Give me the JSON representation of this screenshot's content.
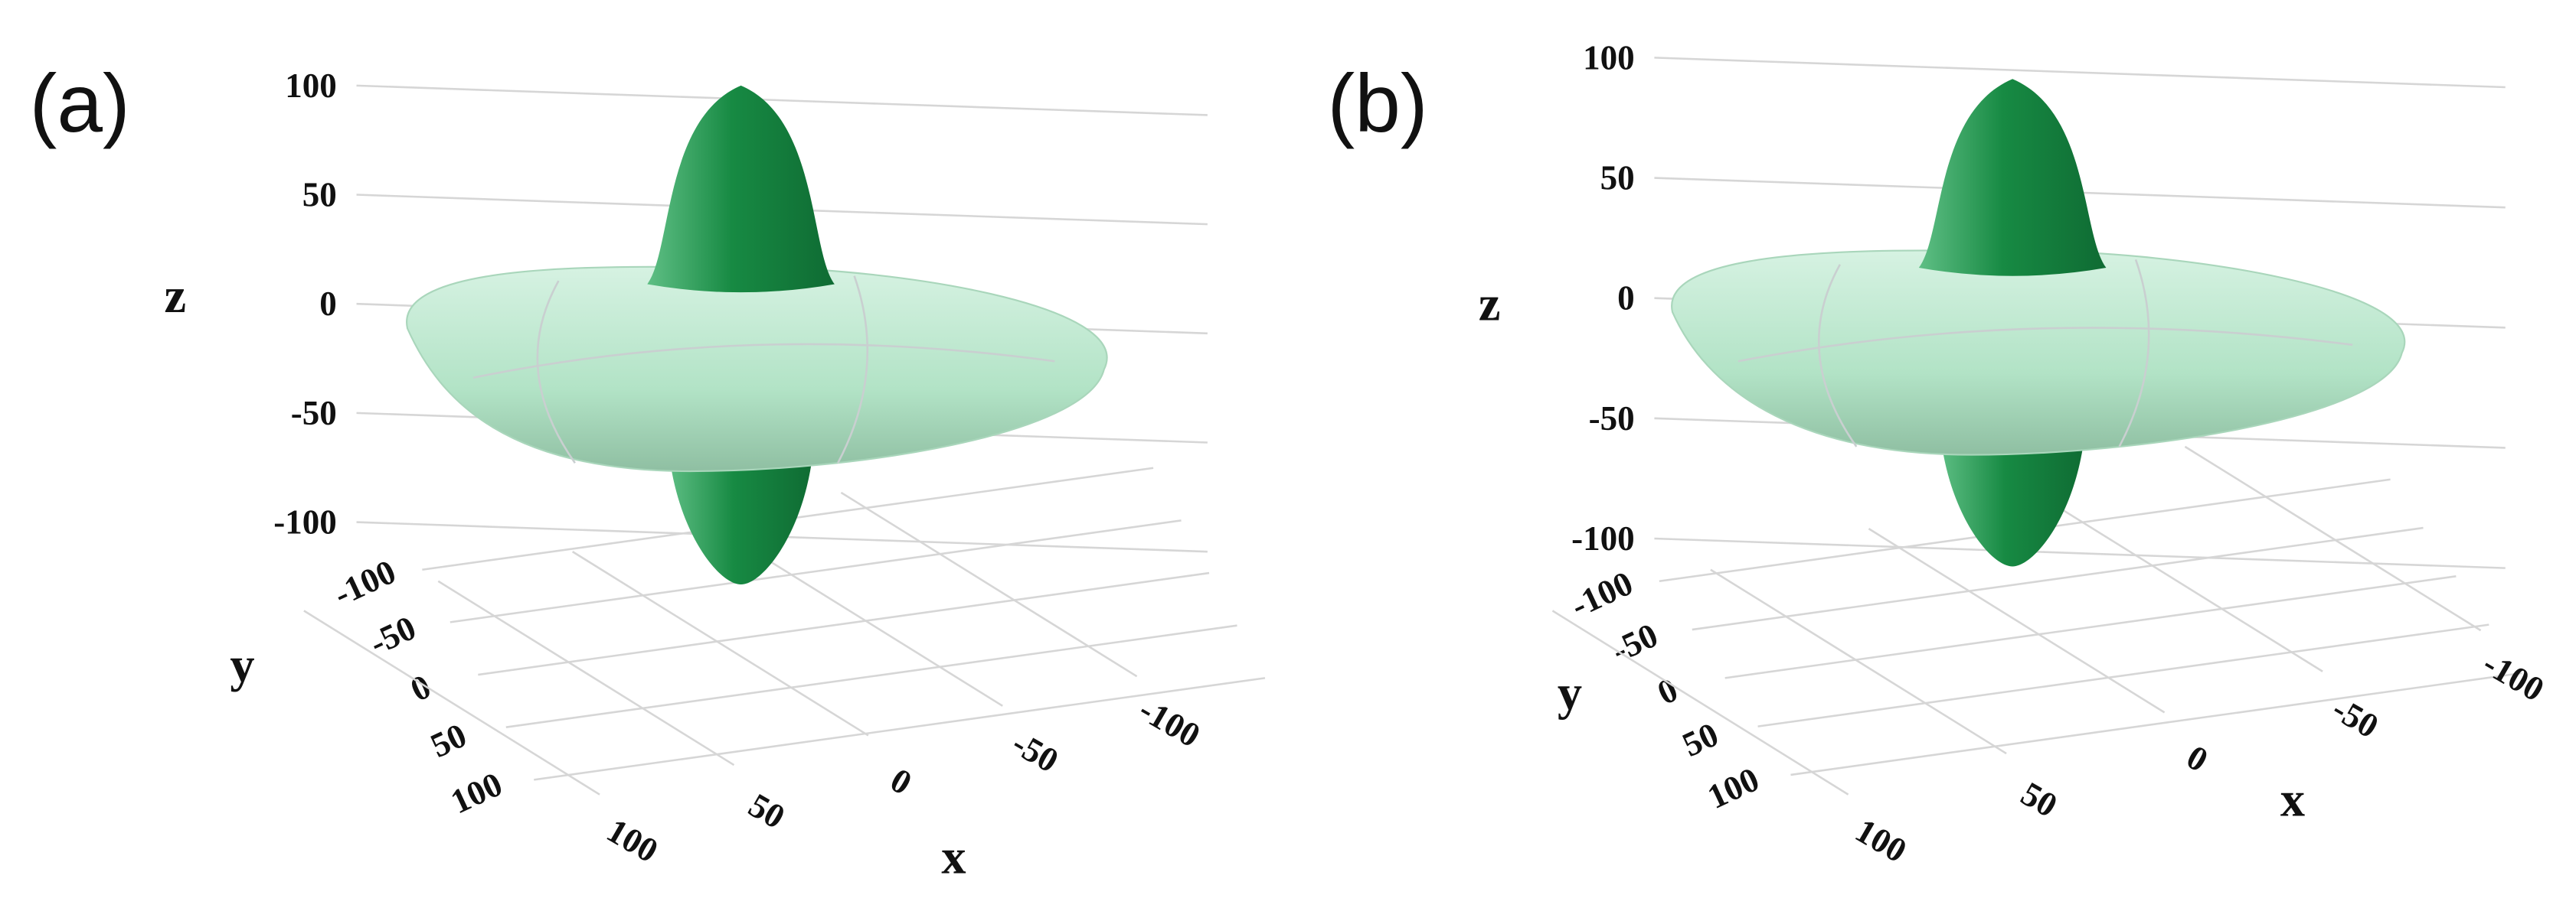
{
  "chart_data": [
    {
      "type": "surface3d",
      "panel_label": "(a)",
      "color": "#178a43",
      "xlabel": "x",
      "ylabel": "y",
      "zlabel": "z",
      "xlim": [
        -100,
        100
      ],
      "xticks": [
        -100,
        -50,
        0,
        50,
        100
      ],
      "ylim": [
        -100,
        100
      ],
      "yticks": [
        -100,
        -50,
        0,
        50,
        100
      ],
      "zlim": [
        -100,
        100
      ],
      "zticks": [
        -100,
        -50,
        0,
        50,
        100
      ],
      "grid": true
    },
    {
      "type": "surface3d",
      "panel_label": "(b)",
      "color": "#178a43",
      "xlabel": "x",
      "ylabel": "y",
      "zlabel": "z",
      "xlim": [
        -100,
        100
      ],
      "xticks": [
        -100,
        -50,
        0,
        50,
        100
      ],
      "ylim": [
        -100,
        100
      ],
      "yticks": [
        -100,
        -50,
        0,
        50,
        100
      ],
      "zlim": [
        -100,
        100
      ],
      "zticks": [
        -100,
        -50,
        0,
        50,
        100
      ],
      "grid": true
    }
  ]
}
